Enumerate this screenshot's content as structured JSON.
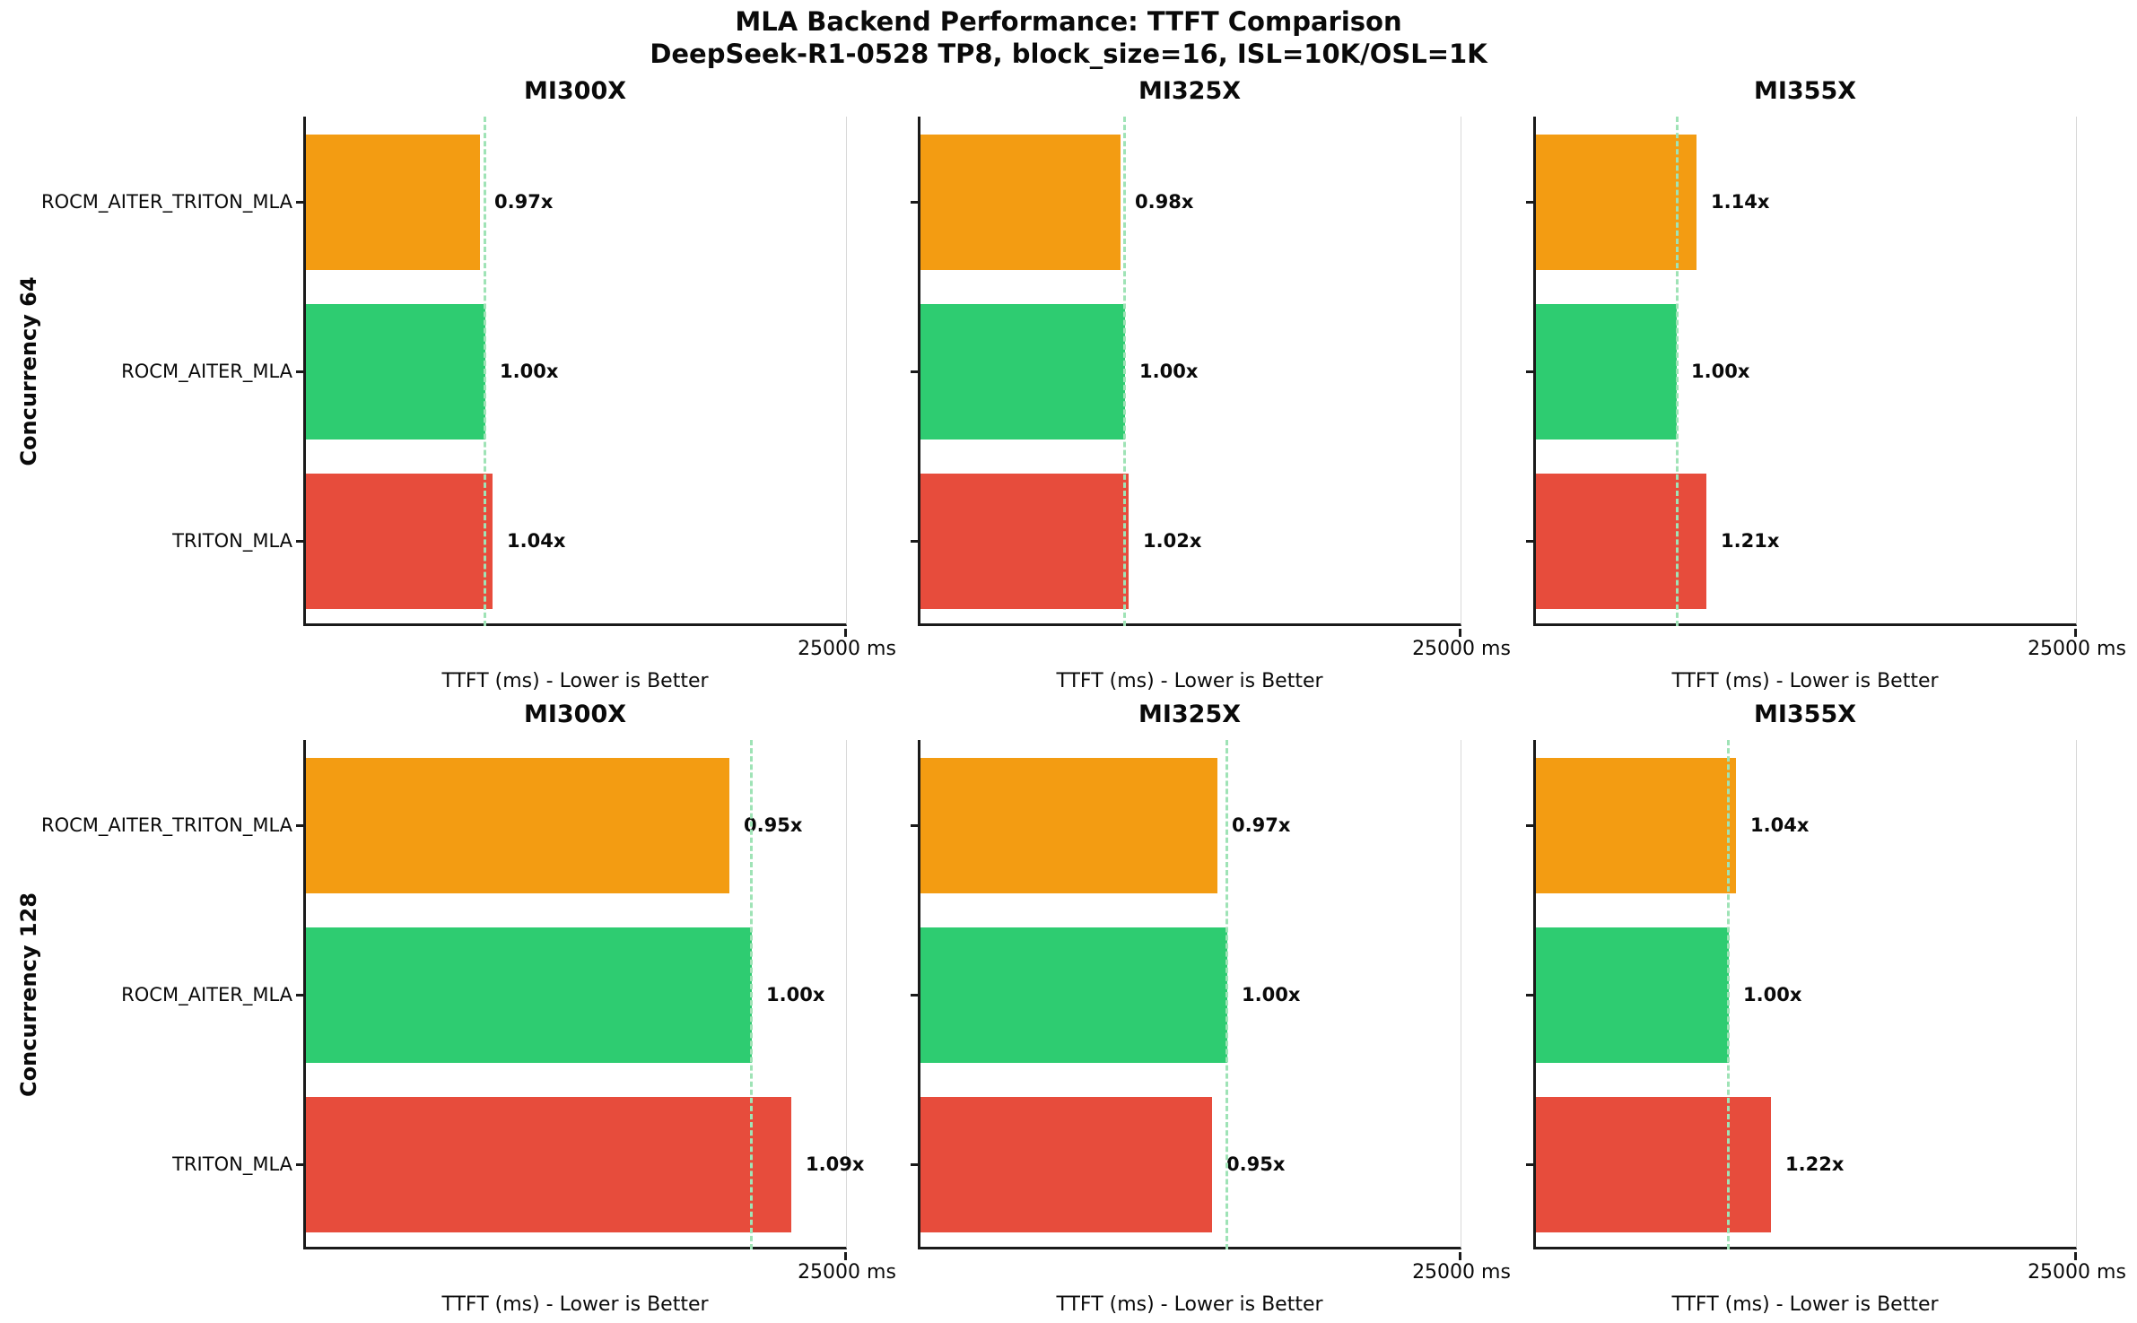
{
  "page_title": {
    "line1": "MLA Backend Performance: TTFT Comparison",
    "line2": "DeepSeek-R1-0528 TP8, block_size=16, ISL=10K/OSL=1K"
  },
  "row_labels": [
    "Concurrency 64",
    "Concurrency 128"
  ],
  "axis": {
    "max_ms": 25000,
    "tick_label": "25000 ms",
    "xlabel": "TTFT (ms) - Lower is Better"
  },
  "backends": [
    {
      "name": "ROCM_AITER_TRITON_MLA",
      "color": "#F39C12"
    },
    {
      "name": "ROCM_AITER_MLA",
      "color": "#2ECC71"
    },
    {
      "name": "TRITON_MLA",
      "color": "#E74C3C"
    }
  ],
  "baseline_line_color": "#9FE3B6",
  "chart_data": {
    "type": "bar",
    "orientation": "horizontal",
    "title": "MLA Backend Performance: TTFT Comparison",
    "subtitle": "DeepSeek-R1-0528 TP8, block_size=16, ISL=10K/OSL=1K",
    "xlabel": "TTFT (ms) - Lower is Better",
    "xlim": [
      0,
      25000
    ],
    "x_tick_labels": [
      "25000 ms"
    ],
    "grid": false,
    "categories": [
      "ROCM_AITER_TRITON_MLA",
      "ROCM_AITER_MLA",
      "TRITON_MLA"
    ],
    "baseline_backend": "ROCM_AITER_MLA",
    "layout": "2 rows (Concurrency 64, Concurrency 128) x 3 cols (MI300X, MI325X, MI355X)",
    "subplots": [
      {
        "row_label": "Concurrency 64",
        "title": "MI300X",
        "ratio_labels": [
          "0.97x",
          "1.00x",
          "1.04x"
        ],
        "ratios": [
          0.97,
          1.0,
          1.04
        ],
        "baseline_ttft_ms_est": 8300,
        "values_ms_est": [
          8050,
          8300,
          8630
        ]
      },
      {
        "row_label": "Concurrency 64",
        "title": "MI325X",
        "ratio_labels": [
          "0.98x",
          "1.00x",
          "1.02x"
        ],
        "ratios": [
          0.98,
          1.0,
          1.02
        ],
        "baseline_ttft_ms_est": 9450,
        "values_ms_est": [
          9260,
          9450,
          9640
        ]
      },
      {
        "row_label": "Concurrency 64",
        "title": "MI355X",
        "ratio_labels": [
          "1.14x",
          "1.00x",
          "1.21x"
        ],
        "ratios": [
          1.14,
          1.0,
          1.21
        ],
        "baseline_ttft_ms_est": 6520,
        "values_ms_est": [
          7430,
          6520,
          7890
        ]
      },
      {
        "row_label": "Concurrency 128",
        "title": "MI300X",
        "ratio_labels": [
          "0.95x",
          "1.00x",
          "1.09x"
        ],
        "ratios": [
          0.95,
          1.0,
          1.09
        ],
        "baseline_ttft_ms_est": 20630,
        "values_ms_est": [
          19600,
          20630,
          22490
        ]
      },
      {
        "row_label": "Concurrency 128",
        "title": "MI325X",
        "ratio_labels": [
          "0.97x",
          "1.00x",
          "0.95x"
        ],
        "ratios": [
          0.97,
          1.0,
          0.95
        ],
        "baseline_ttft_ms_est": 14190,
        "values_ms_est": [
          13760,
          14190,
          13480
        ]
      },
      {
        "row_label": "Concurrency 128",
        "title": "MI355X",
        "ratio_labels": [
          "1.04x",
          "1.00x",
          "1.22x"
        ],
        "ratios": [
          1.04,
          1.0,
          1.22
        ],
        "baseline_ttft_ms_est": 8910,
        "values_ms_est": [
          9270,
          8910,
          10870
        ]
      }
    ]
  }
}
